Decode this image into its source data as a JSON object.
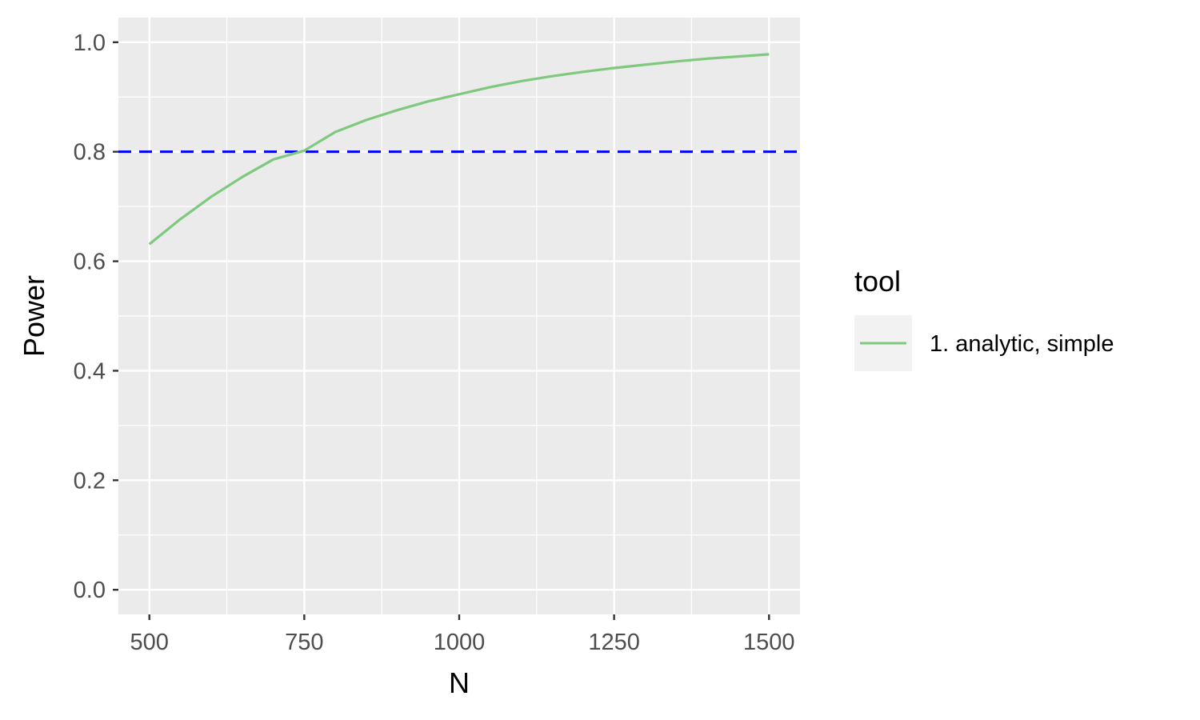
{
  "chart_data": {
    "type": "line",
    "title": "",
    "xlabel": "N",
    "ylabel": "Power",
    "xlim": [
      450,
      1550
    ],
    "ylim": [
      -0.045,
      1.045
    ],
    "x_ticks": [
      500,
      750,
      1000,
      1250,
      1500
    ],
    "x_tick_labels": [
      "500",
      "750",
      "1000",
      "1250",
      "1500"
    ],
    "y_ticks": [
      0.0,
      0.2,
      0.4,
      0.6,
      0.8,
      1.0
    ],
    "y_tick_labels": [
      "0.0",
      "0.2",
      "0.4",
      "0.6",
      "0.8",
      "1.0"
    ],
    "grid": true,
    "legend": {
      "title": "tool",
      "placement": "right"
    },
    "series": [
      {
        "name": "1. analytic, simple",
        "color": "#7fc97f",
        "x": [
          500,
          550,
          600,
          650,
          700,
          750,
          800,
          850,
          900,
          950,
          1000,
          1050,
          1100,
          1150,
          1200,
          1250,
          1300,
          1350,
          1400,
          1450,
          1500
        ],
        "y": [
          0.631,
          0.677,
          0.718,
          0.754,
          0.786,
          0.802,
          0.836,
          0.858,
          0.876,
          0.892,
          0.905,
          0.918,
          0.929,
          0.938,
          0.946,
          0.953,
          0.959,
          0.965,
          0.97,
          0.974,
          0.978
        ]
      }
    ],
    "reference_lines": [
      {
        "axis": "y",
        "value": 0.8,
        "color": "#0000ff",
        "style": "dashed"
      }
    ]
  },
  "colors": {
    "panel_background": "#ebebeb",
    "grid": "#ffffff",
    "legend_key_background": "#f2f2f2"
  }
}
